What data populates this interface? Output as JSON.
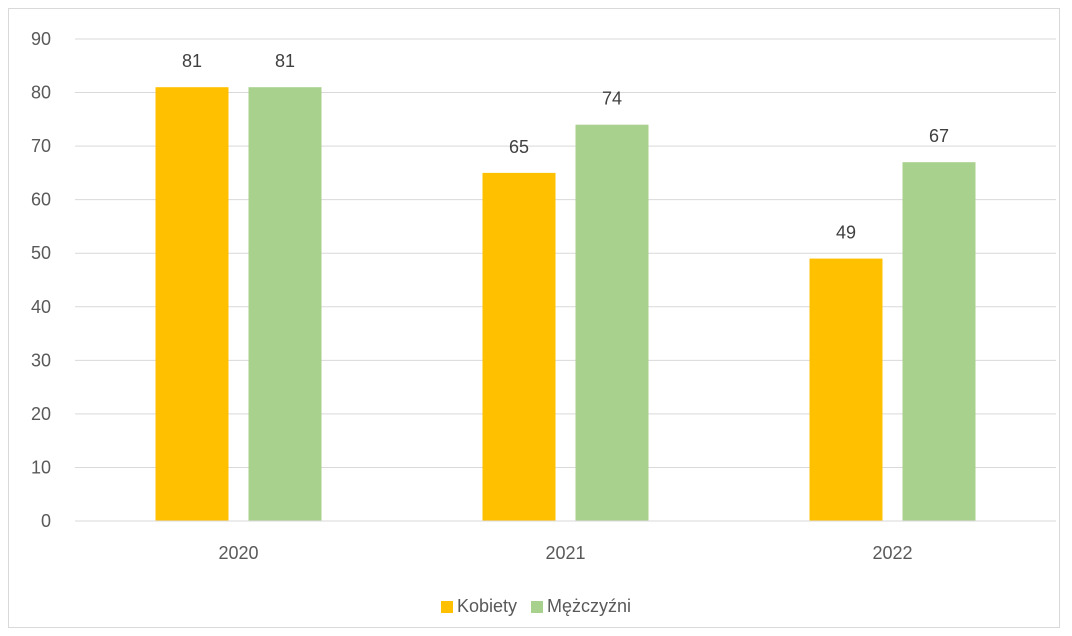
{
  "chart_data": {
    "type": "bar",
    "categories": [
      "2020",
      "2021",
      "2022"
    ],
    "series": [
      {
        "name": "Kobiety",
        "values": [
          81,
          65,
          49
        ],
        "color": "#ffc000"
      },
      {
        "name": "Mężczyźni",
        "values": [
          81,
          74,
          67
        ],
        "color": "#a9d18e"
      }
    ],
    "title": "",
    "xlabel": "",
    "ylabel": "",
    "ylim": [
      0,
      90
    ],
    "yticks": [
      "0",
      "10",
      "20",
      "30",
      "40",
      "50",
      "60",
      "70",
      "80",
      "90"
    ],
    "grid": true,
    "legend": "bottom",
    "data_labels": true
  }
}
